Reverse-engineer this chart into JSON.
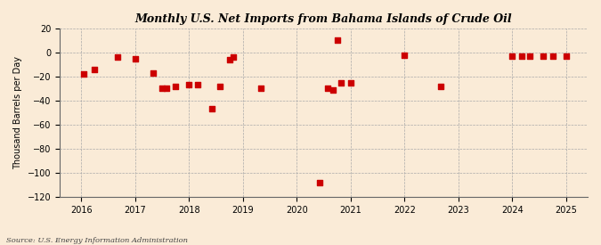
{
  "title": "Monthly U.S. Net Imports from Bahama Islands of Crude Oil",
  "ylabel": "Thousand Barrels per Day",
  "source": "Source: U.S. Energy Information Administration",
  "background_color": "#faebd7",
  "plot_bg_color": "#faebd7",
  "marker_color": "#cc0000",
  "marker_size": 18,
  "ylim": [
    -120,
    20
  ],
  "yticks": [
    20,
    0,
    -20,
    -40,
    -60,
    -80,
    -100,
    -120
  ],
  "xlim": [
    2015.6,
    2025.4
  ],
  "xticks": [
    2016,
    2017,
    2018,
    2019,
    2020,
    2021,
    2022,
    2023,
    2024,
    2025
  ],
  "data_points": [
    [
      2016.05,
      -18
    ],
    [
      2016.25,
      -14
    ],
    [
      2016.67,
      -4
    ],
    [
      2017.0,
      -5
    ],
    [
      2017.33,
      -17
    ],
    [
      2017.5,
      -30
    ],
    [
      2017.58,
      -30
    ],
    [
      2017.75,
      -28
    ],
    [
      2018.0,
      -27
    ],
    [
      2018.17,
      -27
    ],
    [
      2018.42,
      -47
    ],
    [
      2018.58,
      -28
    ],
    [
      2018.75,
      -6
    ],
    [
      2018.83,
      -4
    ],
    [
      2019.33,
      -30
    ],
    [
      2020.42,
      -108
    ],
    [
      2020.58,
      -30
    ],
    [
      2020.67,
      -31
    ],
    [
      2020.75,
      10
    ],
    [
      2020.83,
      -25
    ],
    [
      2021.0,
      -25
    ],
    [
      2022.0,
      -2
    ],
    [
      2022.67,
      -28
    ],
    [
      2024.0,
      -3
    ],
    [
      2024.17,
      -3
    ],
    [
      2024.33,
      -3
    ],
    [
      2024.58,
      -3
    ],
    [
      2024.75,
      -3
    ],
    [
      2025.0,
      -3
    ]
  ]
}
